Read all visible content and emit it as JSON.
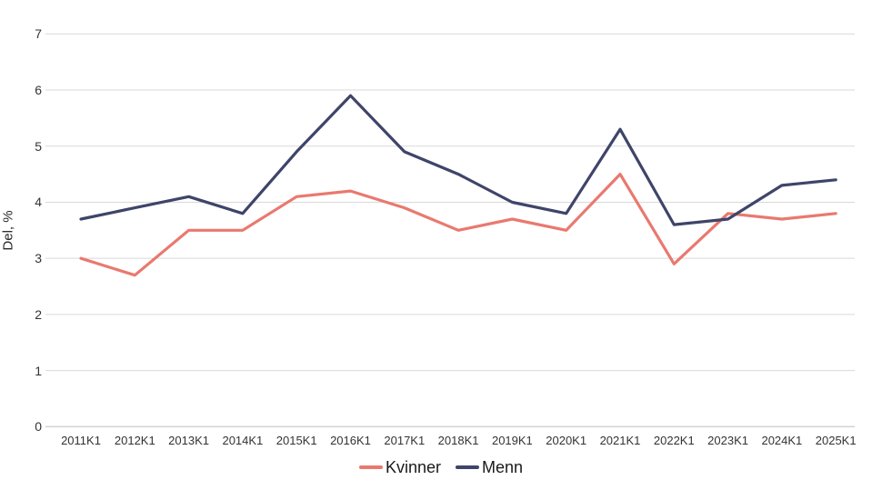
{
  "chart_data": {
    "type": "line",
    "title": "",
    "xlabel": "",
    "ylabel": "Del, %",
    "ylim": [
      0,
      7
    ],
    "ytick_step": 1,
    "grid": "horizontal",
    "legend_position": "bottom-center",
    "categories": [
      "2011K1",
      "2012K1",
      "2013K1",
      "2014K1",
      "2015K1",
      "2016K1",
      "2017K1",
      "2018K1",
      "2019K1",
      "2020K1",
      "2021K1",
      "2022K1",
      "2023K1",
      "2024K1",
      "2025K1"
    ],
    "series": [
      {
        "name": "Kvinner",
        "color": "#E9796F",
        "values": [
          3.0,
          2.7,
          3.5,
          3.5,
          4.1,
          4.2,
          3.9,
          3.5,
          3.7,
          3.5,
          4.5,
          2.9,
          3.8,
          3.7,
          3.8
        ]
      },
      {
        "name": "Menn",
        "color": "#3F4469",
        "values": [
          3.7,
          3.9,
          4.1,
          3.8,
          4.9,
          5.9,
          4.9,
          4.5,
          4.0,
          3.8,
          5.3,
          3.6,
          3.7,
          4.3,
          4.4
        ]
      }
    ]
  },
  "colors": {
    "background": "#FFFFFF",
    "gridline": "#D9D9D9",
    "zero_axis": "#BFBFBF",
    "tick_text": "#333333",
    "legend_text": "#1A1A1A"
  }
}
